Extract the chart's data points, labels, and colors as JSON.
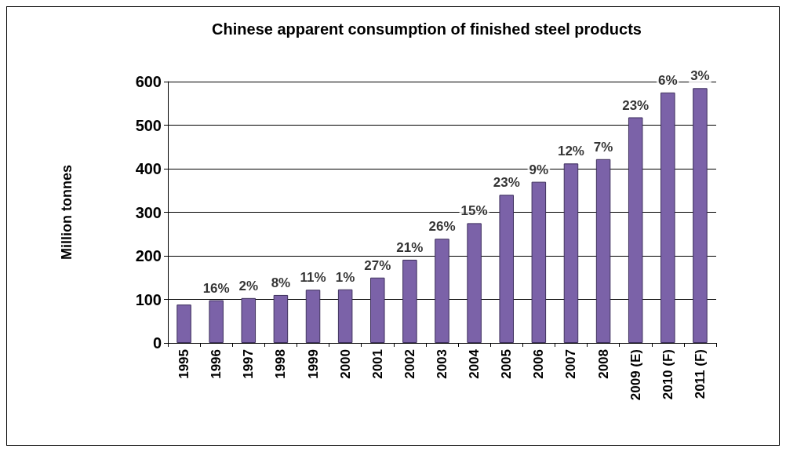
{
  "chart_data": {
    "type": "bar",
    "title": "Chinese apparent consumption of finished steel products",
    "ylabel": "Million tonnes",
    "categories": [
      "1995",
      "1996",
      "1997",
      "1998",
      "1999",
      "2000",
      "2001",
      "2002",
      "2003",
      "2004",
      "2005",
      "2006",
      "2007",
      "2008",
      "2009 (E)",
      "2010 (F)",
      "2011 (F)"
    ],
    "values": [
      88,
      98,
      103,
      110,
      122,
      123,
      150,
      191,
      239,
      275,
      340,
      370,
      412,
      422,
      518,
      575,
      585
    ],
    "annotations": [
      {
        "text": "16%",
        "x": "1996",
        "y": 98
      },
      {
        "text": "2%",
        "x": "1997",
        "y": 103
      },
      {
        "text": "8%",
        "x": "1998",
        "y": 110
      },
      {
        "text": "11%",
        "x": "1999",
        "y": 122
      },
      {
        "text": "1%",
        "x": "2000",
        "y": 123
      },
      {
        "text": "27%",
        "x": "2001",
        "y": 150
      },
      {
        "text": "21%",
        "x": "2002",
        "y": 191
      },
      {
        "text": "26%",
        "x": "2003",
        "y": 239
      },
      {
        "text": "15%",
        "x": "2004",
        "y": 275
      },
      {
        "text": "23%",
        "x": "2005",
        "y": 340
      },
      {
        "text": "9%",
        "x": "2006",
        "y": 370
      },
      {
        "text": "12%",
        "x": "2007",
        "y": 412
      },
      {
        "text": "7%",
        "x": "2008",
        "y": 422
      },
      {
        "text": "23%",
        "x": "2009 (E)",
        "y": 518
      },
      {
        "text": "6%",
        "x": "2010 (F)",
        "y": 575
      },
      {
        "text": "3%",
        "x": "2011 (F)",
        "y": 585
      }
    ],
    "color": "#7b62a8",
    "ylim": [
      0,
      600
    ],
    "yticks": [
      0,
      100,
      200,
      300,
      400,
      500,
      600
    ],
    "grid": "y"
  }
}
